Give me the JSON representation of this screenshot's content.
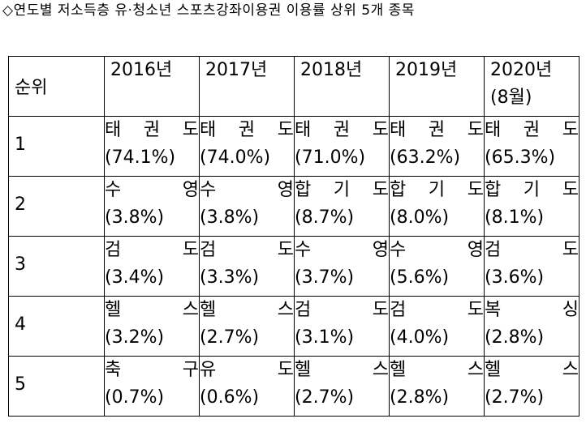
{
  "title": "◇연도별 저소득층 유·청소년 스포츠강좌이용권 이용률 상위 5개 종목",
  "table": {
    "rank_header": "순위",
    "years": [
      {
        "label": "2016년",
        "note": ""
      },
      {
        "label": "2017년",
        "note": ""
      },
      {
        "label": "2018년",
        "note": ""
      },
      {
        "label": "2019년",
        "note": ""
      },
      {
        "label": "2020년",
        "note": "(8월)"
      }
    ],
    "rows": [
      {
        "rank": "1",
        "cells": [
          {
            "sport": "태 권 도",
            "share": "(74.1%)"
          },
          {
            "sport": "태 권 도",
            "share": "(74.0%)"
          },
          {
            "sport": "태 권 도",
            "share": "(71.0%)"
          },
          {
            "sport": "태 권 도",
            "share": "(63.2%)"
          },
          {
            "sport": "태 권 도",
            "share": "(65.3%)"
          }
        ]
      },
      {
        "rank": "2",
        "cells": [
          {
            "sport": "수 영",
            "share": "(3.8%)"
          },
          {
            "sport": "수 영",
            "share": "(3.8%)"
          },
          {
            "sport": "합 기 도",
            "share": "(8.7%)"
          },
          {
            "sport": "합 기 도",
            "share": "(8.0%)"
          },
          {
            "sport": "합 기 도",
            "share": "(8.1%)"
          }
        ]
      },
      {
        "rank": "3",
        "cells": [
          {
            "sport": "검 도",
            "share": "(3.4%)"
          },
          {
            "sport": "검 도",
            "share": "(3.3%)"
          },
          {
            "sport": "수 영",
            "share": "(3.7%)"
          },
          {
            "sport": "수 영",
            "share": "(5.6%)"
          },
          {
            "sport": "검 도",
            "share": "(3.6%)"
          }
        ]
      },
      {
        "rank": "4",
        "cells": [
          {
            "sport": "헬 스",
            "share": "(3.2%)"
          },
          {
            "sport": "헬 스",
            "share": "(2.7%)"
          },
          {
            "sport": "검 도",
            "share": "(3.1%)"
          },
          {
            "sport": "검 도",
            "share": "(4.0%)"
          },
          {
            "sport": "복 싱",
            "share": "(2.8%)"
          }
        ]
      },
      {
        "rank": "5",
        "cells": [
          {
            "sport": "축 구",
            "share": "(0.7%)"
          },
          {
            "sport": "유 도",
            "share": "(0.6%)"
          },
          {
            "sport": "헬 스",
            "share": "(2.7%)"
          },
          {
            "sport": "헬 스",
            "share": "(2.8%)"
          },
          {
            "sport": "헬 스",
            "share": "(2.7%)"
          }
        ]
      }
    ]
  }
}
